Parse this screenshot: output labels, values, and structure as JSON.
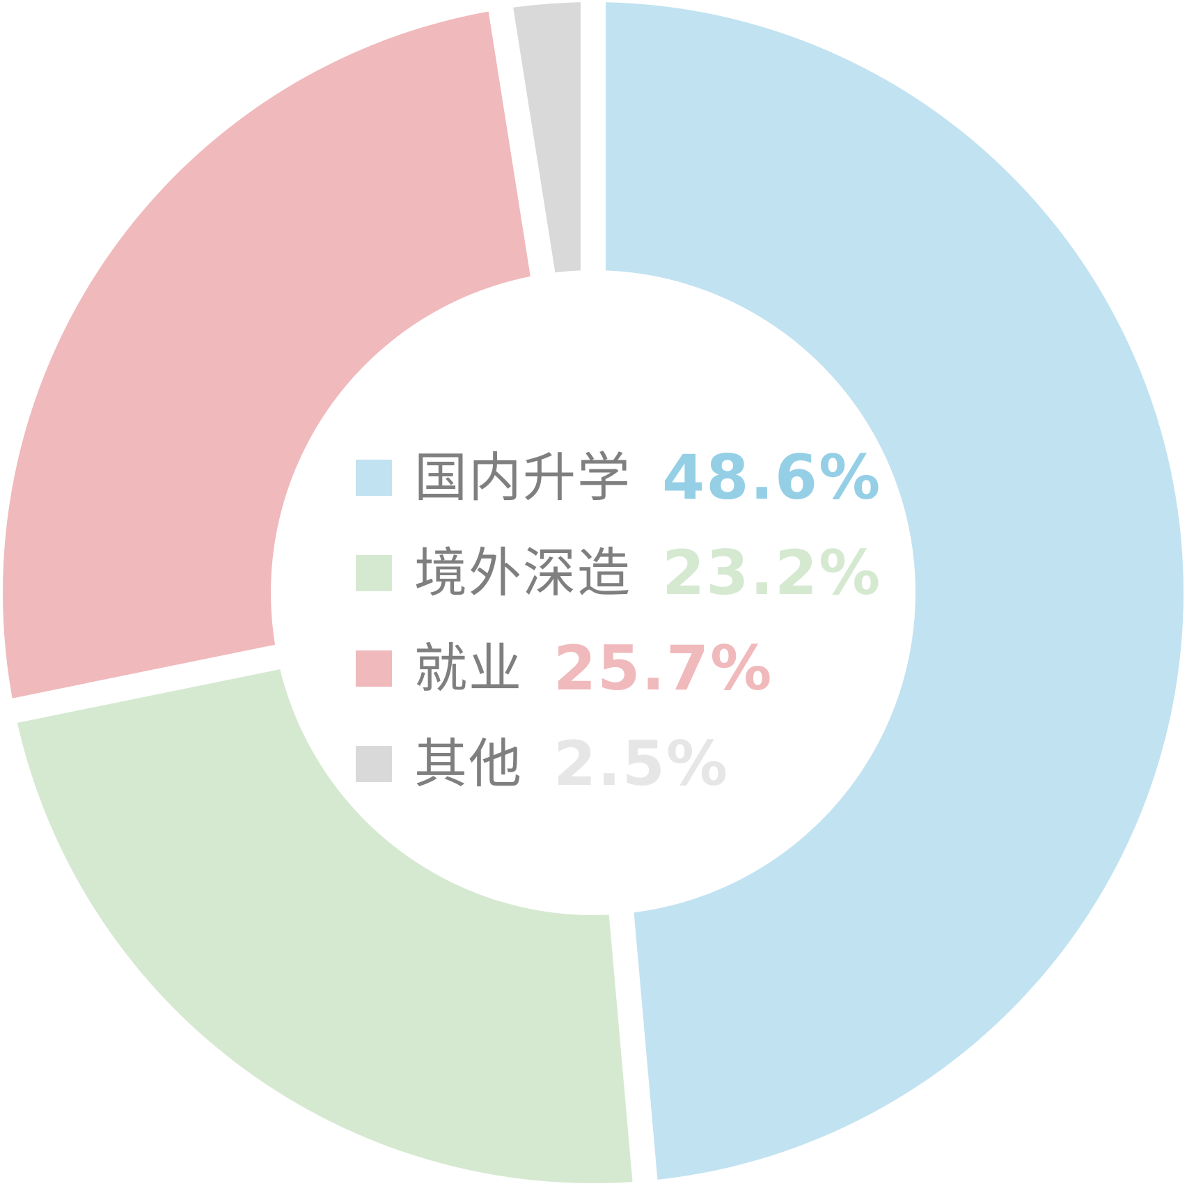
{
  "chart_data": {
    "type": "pie",
    "donut": true,
    "start_angle_deg": 0,
    "direction": "clockwise",
    "slices": [
      {
        "label": "国内升学",
        "value": 48.6,
        "value_label": "48.6%",
        "color": "#c1e2f1",
        "value_color": "#95cfe6"
      },
      {
        "label": "境外深造",
        "value": 23.2,
        "value_label": "23.2%",
        "color": "#d5e9d1",
        "value_color": "#d5e9d1"
      },
      {
        "label": "就业",
        "value": 25.7,
        "value_label": "25.7%",
        "color": "#f0b9bb",
        "value_color": "#f0b9bb"
      },
      {
        "label": "其他",
        "value": 2.5,
        "value_label": "2.5%",
        "color": "#d9d9d9",
        "value_color": "#e6e6e6"
      }
    ],
    "legend_placement": "center"
  }
}
